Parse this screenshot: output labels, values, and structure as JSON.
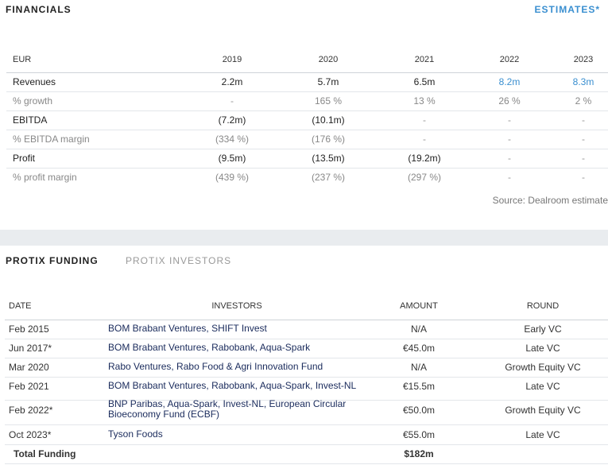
{
  "financials": {
    "title": "FINANCIALS",
    "estimates": "ESTIMATES*",
    "table": {
      "header": [
        "EUR",
        "2019",
        "2020",
        "2021",
        "2022",
        "2023"
      ],
      "rows": [
        [
          "Revenues",
          "2.2m",
          "5.7m",
          "6.5m",
          "8.2m",
          "8.3m"
        ],
        [
          "% growth",
          "-",
          "165 %",
          "13 %",
          "26 %",
          "2 %"
        ],
        [
          "EBITDA",
          "(7.2m)",
          "(10.1m)",
          "-",
          "-",
          "-"
        ],
        [
          "% EBITDA margin",
          "(334 %)",
          "(176 %)",
          "-",
          "-",
          "-"
        ],
        [
          "Profit",
          "(9.5m)",
          "(13.5m)",
          "(19.2m)",
          "-",
          "-"
        ],
        [
          "% profit margin",
          "(439 %)",
          "(237 %)",
          "(297 %)",
          "-",
          "-"
        ]
      ]
    },
    "source": "Source: Dealroom estimate"
  },
  "funding": {
    "tabs": [
      "PROTIX FUNDING",
      "PROTIX INVESTORS"
    ],
    "table": {
      "header": [
        "DATE",
        "INVESTORS",
        "AMOUNT",
        "ROUND"
      ],
      "rows": [
        [
          "Feb 2015",
          "BOM Brabant Ventures, SHIFT Invest",
          "N/A",
          "Early VC"
        ],
        [
          "Jun 2017*",
          "BOM Brabant Ventures, Rabobank, Aqua-Spark",
          "€45.0m",
          "Late VC"
        ],
        [
          "Mar 2020",
          "Rabo Ventures, Rabo Food & Agri Innovation Fund",
          "N/A",
          "Growth Equity VC"
        ],
        [
          "Feb 2021",
          "BOM Brabant Ventures, Rabobank, Aqua-Spark, Invest-NL",
          "€15.5m",
          "Late VC"
        ],
        [
          "Feb 2022*",
          "BNP Paribas, Aqua-Spark, Invest-NL, European Circular Bioeconomy Fund (ECBF)",
          "€50.0m",
          "Growth Equity VC"
        ],
        [
          "Oct 2023*",
          "Tyson Foods",
          "€55.0m",
          "Late VC"
        ]
      ],
      "total": [
        "Total Funding",
        "$182m"
      ]
    }
  }
}
